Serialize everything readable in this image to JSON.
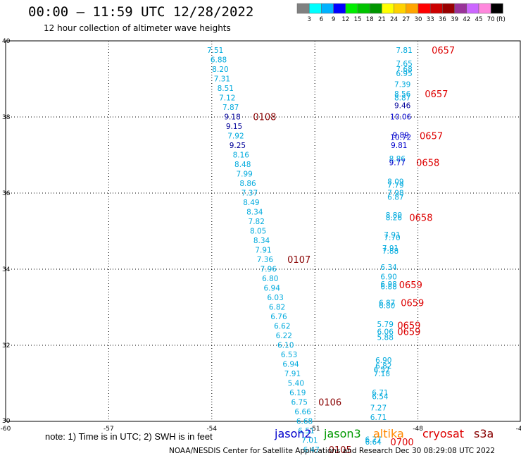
{
  "header": {
    "title": "00:00 – 11:59 UTC 12/28/2022",
    "subtitle": "12 hour collection of altimeter wave heights"
  },
  "footer": {
    "note": "note:  1) Time is in UTC;  2) SWH is in feet",
    "credit": "NOAA/NESDIS Center for Satellite Applications and Research    Dec 30 08:29:08 UTC 2022"
  },
  "legend": {
    "missions": [
      {
        "name": "jason2",
        "color": "#0000cc"
      },
      {
        "name": "jason3",
        "color": "#009900"
      },
      {
        "name": "altika",
        "color": "#ff8800"
      },
      {
        "name": "cryosat",
        "color": "#dd0000"
      },
      {
        "name": "s3a",
        "color": "#880000"
      }
    ]
  },
  "colorbar": {
    "unit": "(ft)",
    "ticks": [
      "3",
      "6",
      "9",
      "12",
      "15",
      "18",
      "21",
      "24",
      "27",
      "30",
      "33",
      "36",
      "39",
      "42",
      "45",
      "70"
    ],
    "colors": [
      "#808080",
      "#00ffff",
      "#00b2ff",
      "#0000ff",
      "#00ee00",
      "#00c400",
      "#009600",
      "#ffff00",
      "#ffd200",
      "#ffa500",
      "#ff0000",
      "#cc0000",
      "#990000",
      "#993399",
      "#cc66ff",
      "#ff88dd",
      "#000000"
    ]
  },
  "chart_data": {
    "type": "scatter",
    "title": "00:00 – 11:59 UTC 12/28/2022",
    "xlim": [
      -60,
      -45
    ],
    "ylim": [
      30,
      40
    ],
    "xticks": [
      "-60",
      "-57",
      "-54",
      "-51",
      "-48",
      "-45"
    ],
    "yticks": [
      "30",
      "32",
      "34",
      "36",
      "38",
      "40"
    ],
    "grid": true,
    "series": [
      {
        "name": "s3a",
        "color": "#880000",
        "points": [
          {
            "x": -53.9,
            "y": 39.76,
            "v": "7.51"
          },
          {
            "x": -53.8,
            "y": 39.51,
            "v": "6.88"
          },
          {
            "x": -53.75,
            "y": 39.26,
            "v": "8.20"
          },
          {
            "x": -53.7,
            "y": 39.01,
            "v": "7.31"
          },
          {
            "x": -53.6,
            "y": 38.76,
            "v": "8.51"
          },
          {
            "x": -53.55,
            "y": 38.51,
            "v": "7.12"
          },
          {
            "x": -53.45,
            "y": 38.26,
            "v": "7.87"
          },
          {
            "x": -53.4,
            "y": 38.01,
            "v": "9.18"
          },
          {
            "x": -53.35,
            "y": 37.76,
            "v": "9.15"
          },
          {
            "x": -53.3,
            "y": 37.51,
            "v": "7.92"
          },
          {
            "x": -53.25,
            "y": 37.26,
            "v": "9.25"
          },
          {
            "x": -53.15,
            "y": 37.01,
            "v": "8.16"
          },
          {
            "x": -53.1,
            "y": 36.76,
            "v": "8.48"
          },
          {
            "x": -53.05,
            "y": 36.51,
            "v": "7.99"
          },
          {
            "x": -52.95,
            "y": 36.26,
            "v": "8.86"
          },
          {
            "x": -52.9,
            "y": 36.01,
            "v": "7.37"
          },
          {
            "x": -52.85,
            "y": 35.76,
            "v": "8.49"
          },
          {
            "x": -52.75,
            "y": 35.51,
            "v": "8.34"
          },
          {
            "x": -52.7,
            "y": 35.26,
            "v": "7.82"
          },
          {
            "x": -52.65,
            "y": 35.01,
            "v": "8.05"
          },
          {
            "x": -52.55,
            "y": 34.76,
            "v": "8.34"
          },
          {
            "x": -52.5,
            "y": 34.51,
            "v": "7.91"
          },
          {
            "x": -52.45,
            "y": 34.26,
            "v": "7.36"
          },
          {
            "x": -52.35,
            "y": 34.01,
            "v": "7.96"
          },
          {
            "x": -52.3,
            "y": 33.76,
            "v": "6.80"
          },
          {
            "x": -52.25,
            "y": 33.51,
            "v": "6.94"
          },
          {
            "x": -52.15,
            "y": 33.26,
            "v": "6.03"
          },
          {
            "x": -52.1,
            "y": 33.01,
            "v": "6.82"
          },
          {
            "x": -52.05,
            "y": 32.76,
            "v": "6.76"
          },
          {
            "x": -51.95,
            "y": 32.51,
            "v": "6.62"
          },
          {
            "x": -51.9,
            "y": 32.26,
            "v": "6.22"
          },
          {
            "x": -51.85,
            "y": 32.01,
            "v": "6.10"
          },
          {
            "x": -51.75,
            "y": 31.76,
            "v": "6.53"
          },
          {
            "x": -51.7,
            "y": 31.51,
            "v": "6.94"
          },
          {
            "x": -51.65,
            "y": 31.26,
            "v": "7.91"
          },
          {
            "x": -51.55,
            "y": 31.01,
            "v": "5.40"
          },
          {
            "x": -51.5,
            "y": 30.76,
            "v": "6.19"
          },
          {
            "x": -51.45,
            "y": 30.51,
            "v": "6.75"
          },
          {
            "x": -51.35,
            "y": 30.26,
            "v": "6.66"
          },
          {
            "x": -51.3,
            "y": 30.01,
            "v": "6.68"
          },
          {
            "x": -51.25,
            "y": 29.76,
            "v": "6.51"
          },
          {
            "x": -51.15,
            "y": 29.51,
            "v": "7.01"
          },
          {
            "x": -51.1,
            "y": 29.26,
            "v": "6.47"
          }
        ],
        "time_labels": [
          {
            "x": -52.8,
            "y": 38.01,
            "t": "0108"
          },
          {
            "x": -51.8,
            "y": 34.26,
            "t": "0107"
          },
          {
            "x": -50.9,
            "y": 30.51,
            "t": "0106"
          },
          {
            "x": -50.6,
            "y": 29.26,
            "t": "0105"
          }
        ]
      },
      {
        "name": "cryosat",
        "color": "#dd0000",
        "points": [
          {
            "x": -48.4,
            "y": 39.76,
            "v": "7.81"
          },
          {
            "x": -48.4,
            "y": 39.41,
            "v": "7.65"
          },
          {
            "x": -48.4,
            "y": 39.26,
            "v": "7.68"
          },
          {
            "x": -48.4,
            "y": 39.15,
            "v": "6.95"
          },
          {
            "x": -48.45,
            "y": 38.86,
            "v": "7.39"
          },
          {
            "x": -48.45,
            "y": 38.61,
            "v": "8.56"
          },
          {
            "x": -48.45,
            "y": 38.51,
            "v": "8.87"
          },
          {
            "x": -48.45,
            "y": 38.31,
            "v": "9.46"
          },
          {
            "x": -48.5,
            "y": 38.01,
            "v": "10.06"
          },
          {
            "x": -48.5,
            "y": 37.53,
            "v": "9.89"
          },
          {
            "x": -48.5,
            "y": 37.47,
            "v": "10.72"
          },
          {
            "x": -48.55,
            "y": 37.26,
            "v": "9.81"
          },
          {
            "x": -48.6,
            "y": 36.91,
            "v": "8.86"
          },
          {
            "x": -48.6,
            "y": 36.81,
            "v": "9.77"
          },
          {
            "x": -48.65,
            "y": 36.31,
            "v": "8.09"
          },
          {
            "x": -48.65,
            "y": 36.21,
            "v": "7.79"
          },
          {
            "x": -48.65,
            "y": 36.01,
            "v": "7.98"
          },
          {
            "x": -48.65,
            "y": 35.9,
            "v": "6.87"
          },
          {
            "x": -48.7,
            "y": 35.43,
            "v": "8.80"
          },
          {
            "x": -48.7,
            "y": 35.36,
            "v": "8.26"
          },
          {
            "x": -48.75,
            "y": 34.91,
            "v": "7.91"
          },
          {
            "x": -48.75,
            "y": 34.83,
            "v": "7.70"
          },
          {
            "x": -48.8,
            "y": 34.56,
            "v": "7.91"
          },
          {
            "x": -48.8,
            "y": 34.48,
            "v": "7.88"
          },
          {
            "x": -48.85,
            "y": 34.06,
            "v": "6.34"
          },
          {
            "x": -48.85,
            "y": 33.81,
            "v": "6.90"
          },
          {
            "x": -48.85,
            "y": 33.61,
            "v": "6.98"
          },
          {
            "x": -48.85,
            "y": 33.55,
            "v": "6.88"
          },
          {
            "x": -48.9,
            "y": 33.12,
            "v": "6.87"
          },
          {
            "x": -48.9,
            "y": 33.05,
            "v": "6.80"
          },
          {
            "x": -48.95,
            "y": 32.56,
            "v": "5.79"
          },
          {
            "x": -48.95,
            "y": 32.36,
            "v": "6.06"
          },
          {
            "x": -48.95,
            "y": 32.21,
            "v": "5.88"
          },
          {
            "x": -49.0,
            "y": 31.61,
            "v": "6.90"
          },
          {
            "x": -49.0,
            "y": 31.46,
            "v": "6.82"
          },
          {
            "x": -49.05,
            "y": 31.36,
            "v": "6.57"
          },
          {
            "x": -49.05,
            "y": 31.26,
            "v": "7.18"
          },
          {
            "x": -49.1,
            "y": 30.76,
            "v": "6.71"
          },
          {
            "x": -49.1,
            "y": 30.66,
            "v": "6.54"
          },
          {
            "x": -49.15,
            "y": 30.36,
            "v": "7.27"
          },
          {
            "x": -49.15,
            "y": 30.11,
            "v": "6.71"
          },
          {
            "x": -49.3,
            "y": 29.53,
            "v": "6.77"
          },
          {
            "x": -49.3,
            "y": 29.46,
            "v": "6.64"
          }
        ],
        "time_labels": [
          {
            "x": -47.6,
            "y": 39.76,
            "t": "0657"
          },
          {
            "x": -47.8,
            "y": 38.61,
            "t": "0657"
          },
          {
            "x": -47.95,
            "y": 37.51,
            "t": "0657"
          },
          {
            "x": -48.05,
            "y": 36.81,
            "t": "0658"
          },
          {
            "x": -48.25,
            "y": 35.36,
            "t": "0658"
          },
          {
            "x": -48.55,
            "y": 33.59,
            "t": "0659"
          },
          {
            "x": -48.5,
            "y": 33.12,
            "t": "0659"
          },
          {
            "x": -48.6,
            "y": 32.53,
            "t": "0659"
          },
          {
            "x": -48.6,
            "y": 32.36,
            "t": "0659"
          },
          {
            "x": -48.8,
            "y": 29.46,
            "t": "0700"
          }
        ]
      }
    ]
  }
}
